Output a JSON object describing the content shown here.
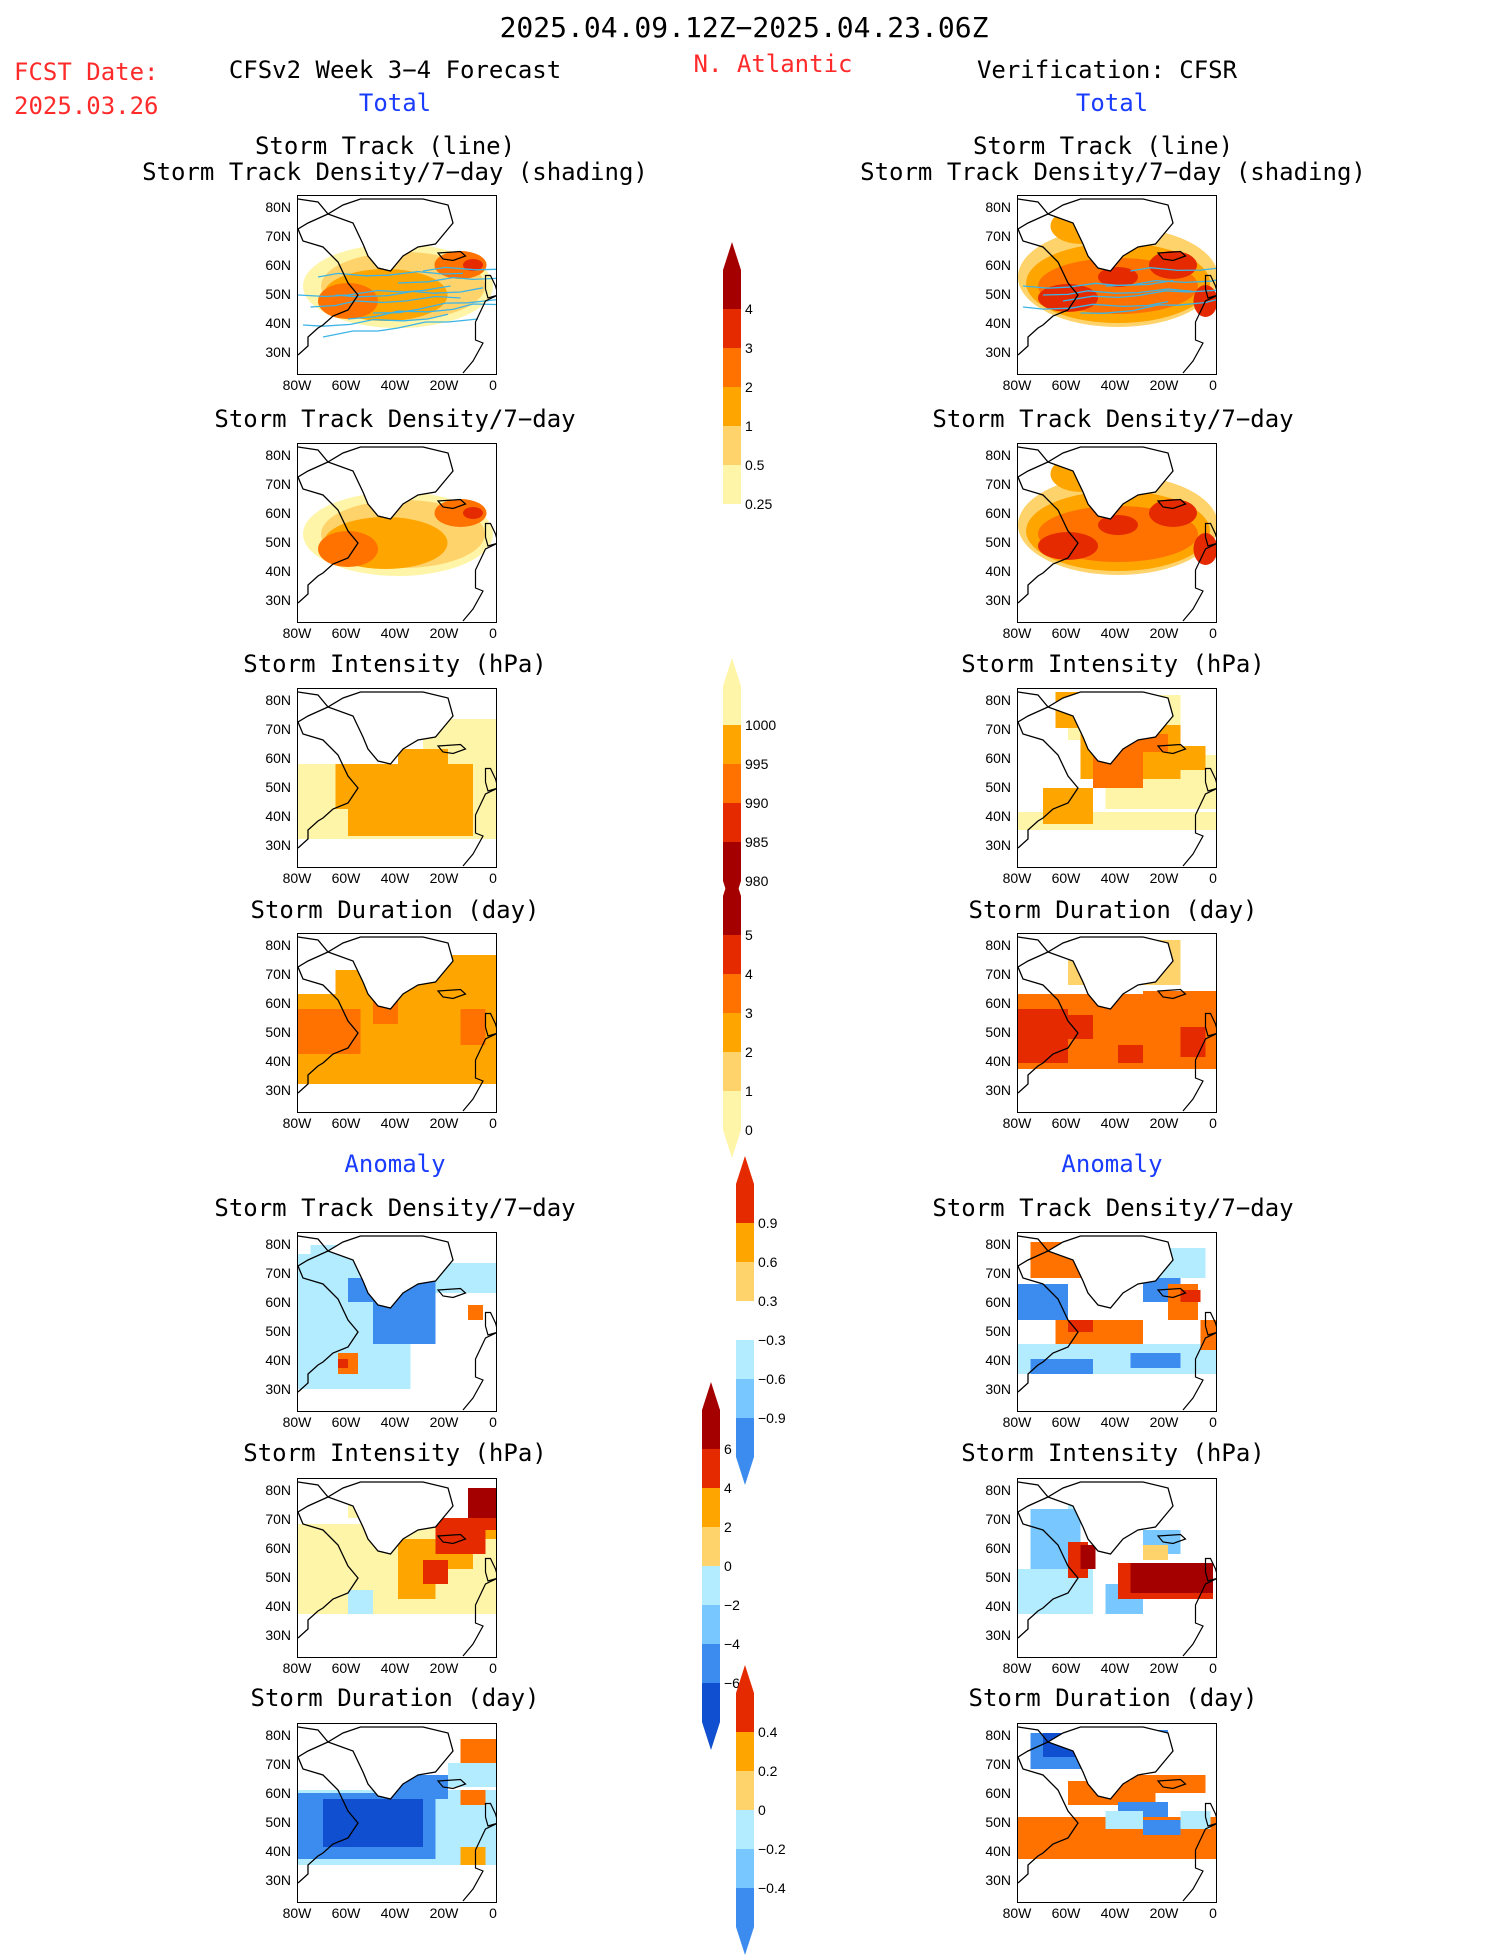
{
  "header": {
    "period": "2025.04.09.12Z−2025.04.23.06Z",
    "fcst_label": "FCST Date:",
    "fcst_date": "2025.03.26",
    "model_title": "CFSv2 Week 3−4 Forecast",
    "region": "N. Atlantic",
    "verification": "Verification: CFSR",
    "total_left": "Total",
    "total_right": "Total",
    "anomaly_left": "Anomaly",
    "anomaly_right": "Anomaly"
  },
  "panels": {
    "p1_title_a": "Storm Track (line)",
    "p1_title_b": "Storm Track Density/7−day (shading)",
    "p2_title": "Storm Track Density/7−day",
    "p3_title": "Storm Intensity (hPa)",
    "p4_title": "Storm Duration (day)",
    "p5_title": "Storm Track Density/7−day",
    "p6_title": "Storm Intensity (hPa)",
    "p7_title": "Storm Duration (day)"
  },
  "axes": {
    "y_ticks": [
      "80N",
      "70N",
      "60N",
      "50N",
      "40N",
      "30N"
    ],
    "x_ticks": [
      "80W",
      "60W",
      "40W",
      "20W",
      "0"
    ]
  },
  "colorbars": {
    "density": [
      "4",
      "3",
      "2",
      "1",
      "0.5",
      "0.25"
    ],
    "intensity": [
      "1000",
      "995",
      "990",
      "985",
      "980"
    ],
    "duration": [
      "5",
      "4",
      "3",
      "2",
      "1",
      "0"
    ],
    "density_anom": [
      "0.9",
      "0.6",
      "0.3",
      "−0.3",
      "−0.6",
      "−0.9"
    ],
    "intensity_anom": [
      "6",
      "4",
      "2",
      "0",
      "−2",
      "−4",
      "−6"
    ],
    "duration_anom": [
      "0.4",
      "0.2",
      "0",
      "−0.2",
      "−0.4"
    ]
  },
  "colors": {
    "c1": "#fff5a8",
    "c2": "#ffd36b",
    "c3": "#ffa500",
    "c4": "#ff7200",
    "c5": "#e62a00",
    "c6": "#a50000",
    "b1": "#b4ecff",
    "b2": "#78c8ff",
    "b3": "#3c8cf0",
    "b4": "#1050d0",
    "track": "#3cb4e6"
  },
  "chart_data": [
    {
      "type": "heatmap",
      "title": "Storm Track (line) / Storm Track Density/7−day (shading)",
      "column": "CFSv2 Week 3−4 Forecast",
      "section": "Total",
      "xlim": [
        -80,
        0
      ],
      "ylim": [
        25,
        85
      ],
      "levels": [
        0.25,
        0.5,
        1,
        2,
        3,
        4
      ]
    },
    {
      "type": "heatmap",
      "title": "Storm Track Density/7−day",
      "column": "CFSv2 Week 3−4 Forecast",
      "section": "Total",
      "xlim": [
        -80,
        0
      ],
      "ylim": [
        25,
        85
      ],
      "levels": [
        0.25,
        0.5,
        1,
        2,
        3,
        4
      ]
    },
    {
      "type": "heatmap",
      "title": "Storm Intensity (hPa)",
      "column": "CFSv2 Week 3−4 Forecast",
      "section": "Total",
      "xlim": [
        -80,
        0
      ],
      "ylim": [
        25,
        85
      ],
      "levels": [
        980,
        985,
        990,
        995,
        1000
      ]
    },
    {
      "type": "heatmap",
      "title": "Storm Duration (day)",
      "column": "CFSv2 Week 3−4 Forecast",
      "section": "Total",
      "xlim": [
        -80,
        0
      ],
      "ylim": [
        25,
        85
      ],
      "levels": [
        0,
        1,
        2,
        3,
        4,
        5
      ]
    },
    {
      "type": "heatmap",
      "title": "Storm Track Density/7−day",
      "column": "CFSv2 Week 3−4 Forecast",
      "section": "Anomaly",
      "xlim": [
        -80,
        0
      ],
      "ylim": [
        25,
        85
      ],
      "levels": [
        -0.9,
        -0.6,
        -0.3,
        0.3,
        0.6,
        0.9
      ]
    },
    {
      "type": "heatmap",
      "title": "Storm Intensity (hPa)",
      "column": "CFSv2 Week 3−4 Forecast",
      "section": "Anomaly",
      "xlim": [
        -80,
        0
      ],
      "ylim": [
        25,
        85
      ],
      "levels": [
        -6,
        -4,
        -2,
        0,
        2,
        4,
        6
      ]
    },
    {
      "type": "heatmap",
      "title": "Storm Duration (day)",
      "column": "CFSv2 Week 3−4 Forecast",
      "section": "Anomaly",
      "xlim": [
        -80,
        0
      ],
      "ylim": [
        25,
        85
      ],
      "levels": [
        -0.4,
        -0.2,
        0,
        0.2,
        0.4
      ]
    },
    {
      "type": "heatmap",
      "title": "Storm Track (line) / Storm Track Density/7−day (shading)",
      "column": "Verification: CFSR",
      "section": "Total",
      "xlim": [
        -80,
        0
      ],
      "ylim": [
        25,
        85
      ],
      "levels": [
        0.25,
        0.5,
        1,
        2,
        3,
        4
      ]
    },
    {
      "type": "heatmap",
      "title": "Storm Track Density/7−day",
      "column": "Verification: CFSR",
      "section": "Total",
      "xlim": [
        -80,
        0
      ],
      "ylim": [
        25,
        85
      ],
      "levels": [
        0.25,
        0.5,
        1,
        2,
        3,
        4
      ]
    },
    {
      "type": "heatmap",
      "title": "Storm Intensity (hPa)",
      "column": "Verification: CFSR",
      "section": "Total",
      "xlim": [
        -80,
        0
      ],
      "ylim": [
        25,
        85
      ],
      "levels": [
        980,
        985,
        990,
        995,
        1000
      ]
    },
    {
      "type": "heatmap",
      "title": "Storm Duration (day)",
      "column": "Verification: CFSR",
      "section": "Total",
      "xlim": [
        -80,
        0
      ],
      "ylim": [
        25,
        85
      ],
      "levels": [
        0,
        1,
        2,
        3,
        4,
        5
      ]
    },
    {
      "type": "heatmap",
      "title": "Storm Track Density/7−day",
      "column": "Verification: CFSR",
      "section": "Anomaly",
      "xlim": [
        -80,
        0
      ],
      "ylim": [
        25,
        85
      ],
      "levels": [
        -0.9,
        -0.6,
        -0.3,
        0.3,
        0.6,
        0.9
      ]
    },
    {
      "type": "heatmap",
      "title": "Storm Intensity (hPa)",
      "column": "Verification: CFSR",
      "section": "Anomaly",
      "xlim": [
        -80,
        0
      ],
      "ylim": [
        25,
        85
      ],
      "levels": [
        -6,
        -4,
        -2,
        0,
        2,
        4,
        6
      ]
    },
    {
      "type": "heatmap",
      "title": "Storm Duration (day)",
      "column": "Verification: CFSR",
      "section": "Anomaly",
      "xlim": [
        -80,
        0
      ],
      "ylim": [
        25,
        85
      ],
      "levels": [
        -0.4,
        -0.2,
        0,
        0.2,
        0.4
      ]
    }
  ]
}
